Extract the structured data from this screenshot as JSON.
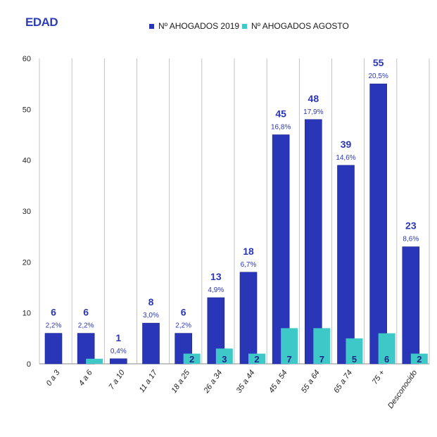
{
  "chart_data": {
    "type": "bar",
    "title": "EDAD",
    "categories": [
      "0 a 3",
      "4 a 6",
      "7 a 10",
      "11 a 17",
      "18 a 25",
      "26 a 34",
      "35 a 44",
      "45 a 54",
      "55 a 64",
      "65 a 74",
      "75 +",
      "Desconocido"
    ],
    "series": [
      {
        "name": "Nº AHOGADOS 2019",
        "color": "#2a36b8",
        "values": [
          6,
          6,
          1,
          8,
          6,
          13,
          18,
          45,
          48,
          39,
          55,
          23
        ],
        "value_labels": [
          "6",
          "6",
          "1",
          "8",
          "6",
          "13",
          "18",
          "45",
          "48",
          "39",
          "55",
          "23"
        ],
        "percent_labels": [
          "2,2%",
          "2,2%",
          "0,4%",
          "3,0%",
          "2,2%",
          "4,9%",
          "6,7%",
          "16,8%",
          "17,9%",
          "14,6%",
          "20,5%",
          "8,6%"
        ]
      },
      {
        "name": "Nº AHOGADOS AGOSTO",
        "color": "#3ec8c8",
        "values": [
          0,
          1,
          0,
          0,
          2,
          3,
          2,
          7,
          7,
          5,
          6,
          2
        ],
        "value_labels": [
          "",
          "",
          "",
          "",
          "2",
          "3",
          "2",
          "7",
          "7",
          "5",
          "6",
          "2"
        ]
      }
    ],
    "ylim": [
      0,
      60
    ],
    "yticks": [
      0,
      10,
      20,
      30,
      40,
      50,
      60
    ],
    "xlabel": "",
    "ylabel": "",
    "grid": "vertical-separators",
    "legend_position": "top"
  }
}
